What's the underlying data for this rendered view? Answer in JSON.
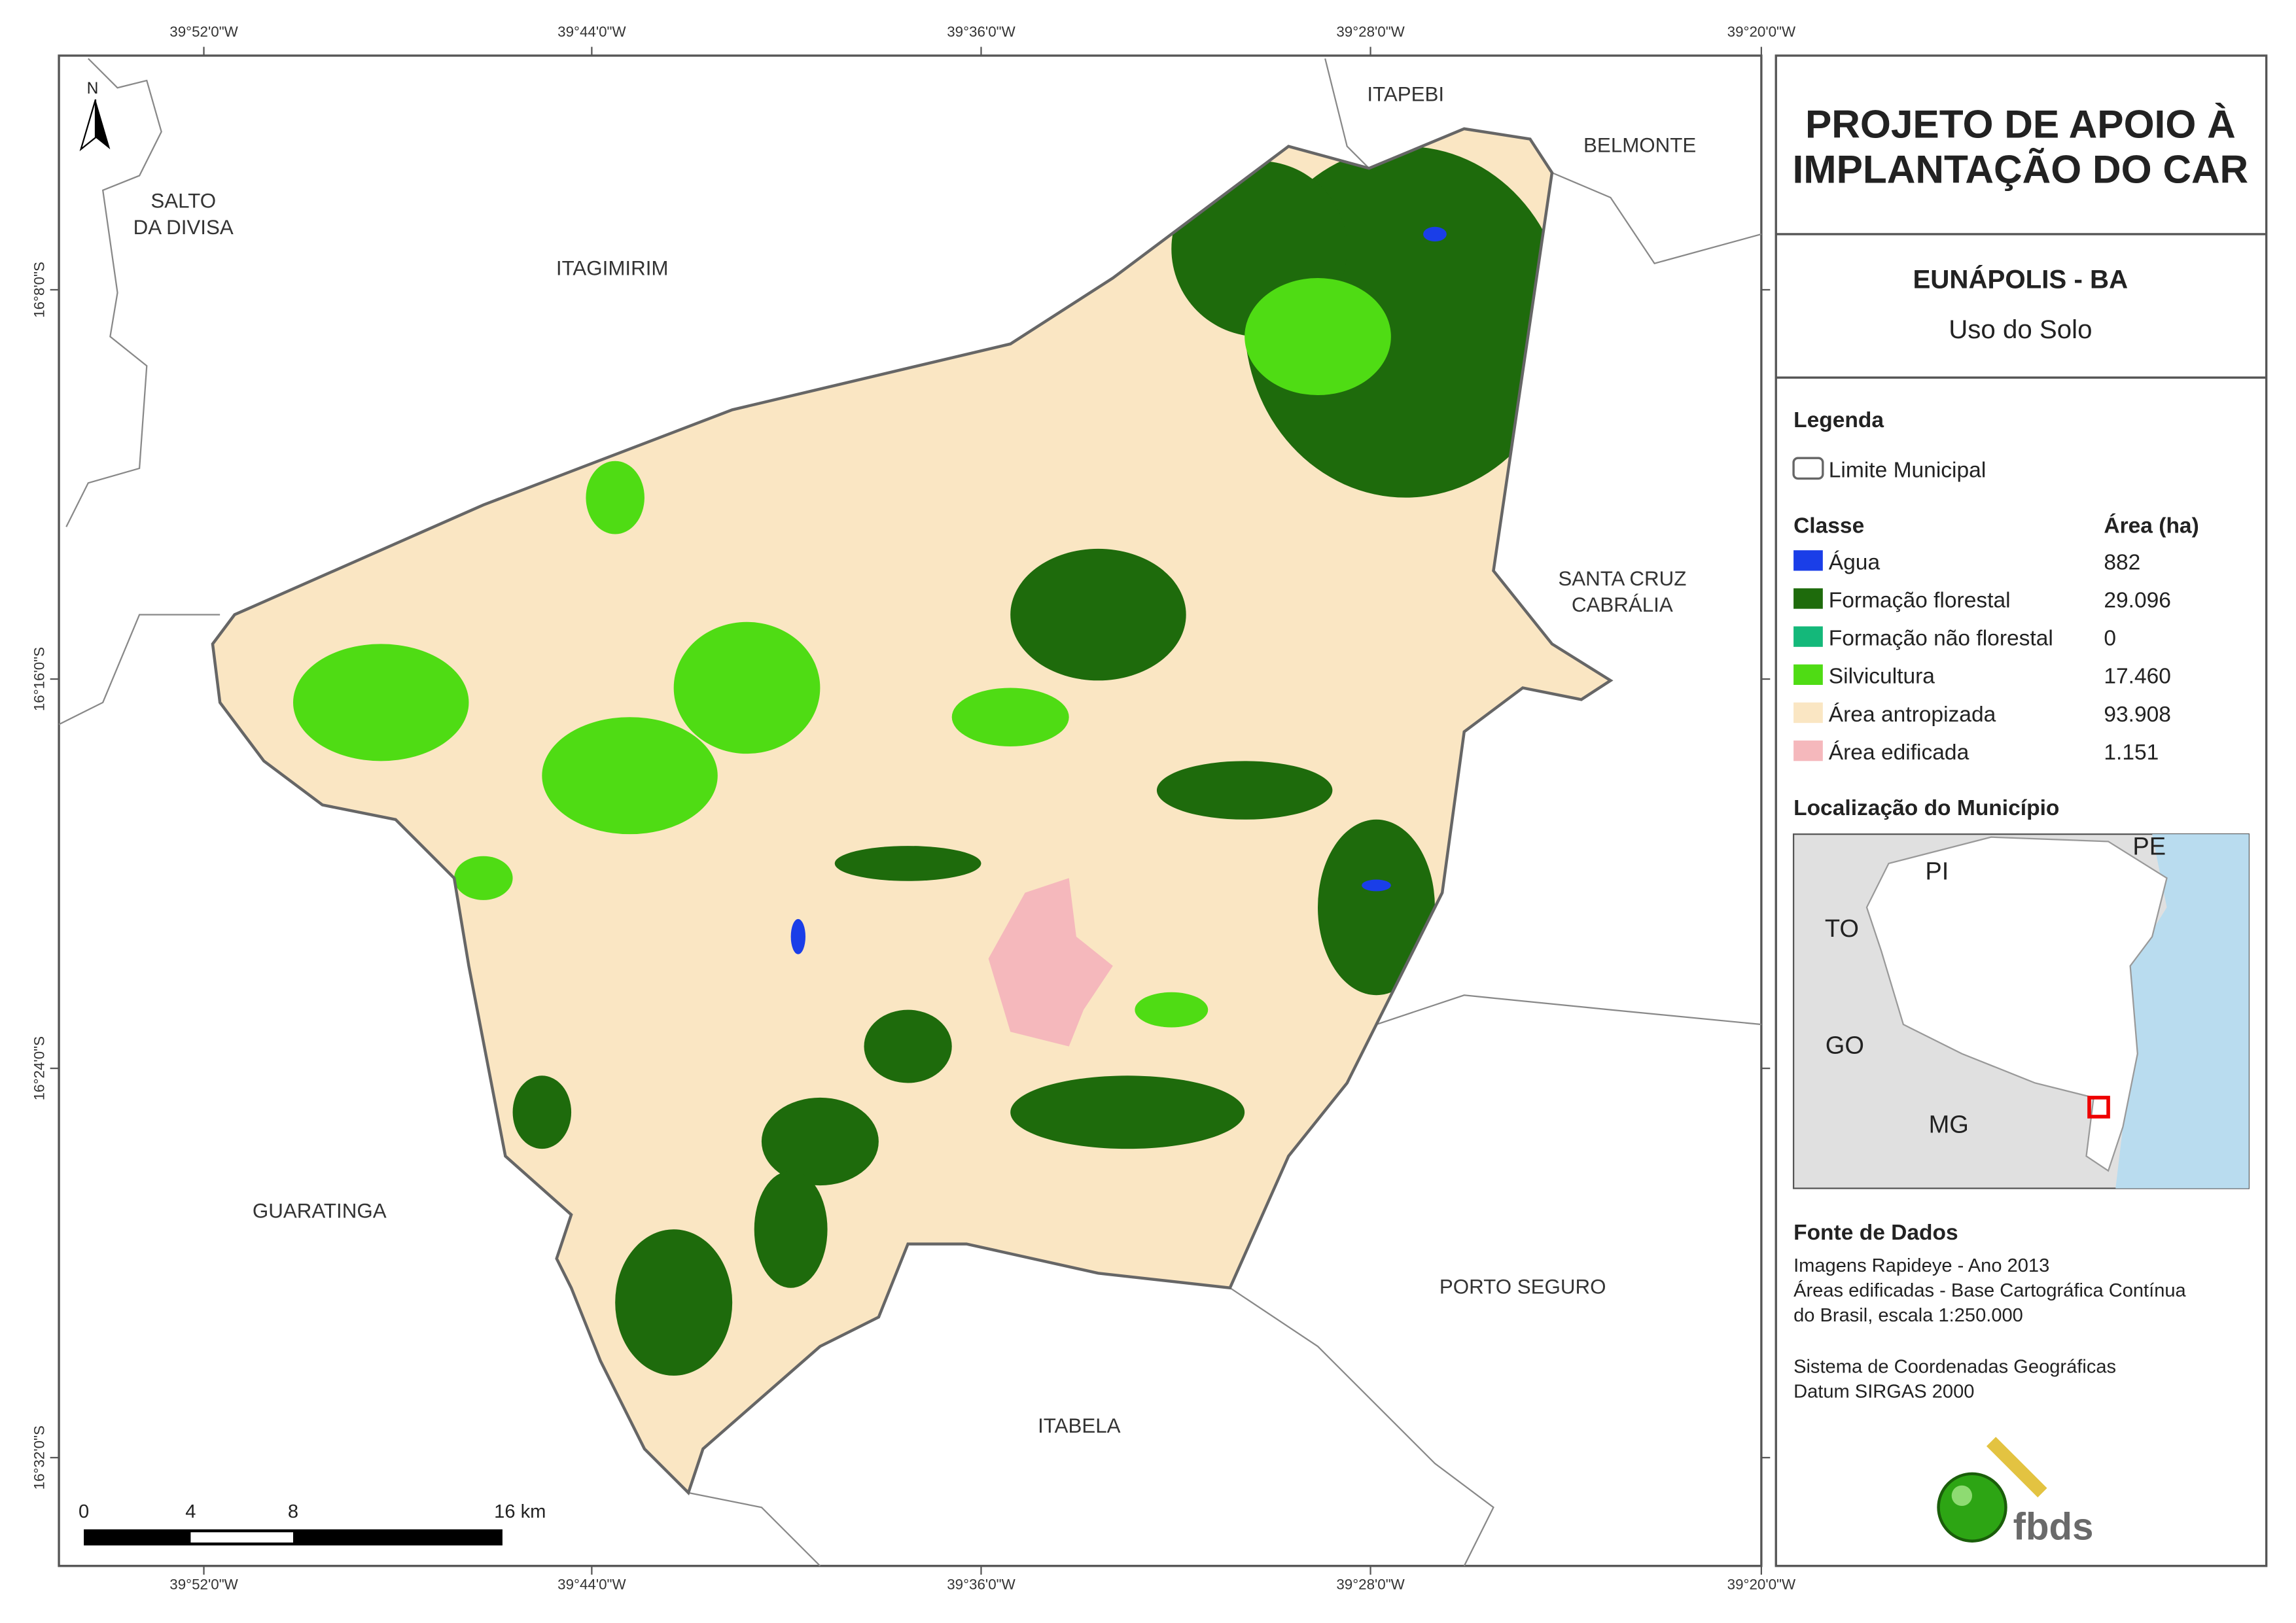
{
  "map": {
    "title_lines": [
      "PROJETO DE APOIO À",
      "IMPLANTAÇÃO DO CAR"
    ],
    "municipality": "EUNÁPOLIS - BA",
    "subtitle": "Uso do Solo",
    "longitude_labels": [
      "39°52'0\"W",
      "39°44'0\"W",
      "39°36'0\"W",
      "39°28'0\"W",
      "39°20'0\"W"
    ],
    "latitude_labels": [
      "16°8'0\"S",
      "16°16'0\"S",
      "16°24'0\"S",
      "16°32'0\"S"
    ],
    "neighbors": [
      [
        "ITAPEBI"
      ],
      [
        "BELMONTE"
      ],
      [
        "SALTO",
        "DA DIVISA"
      ],
      [
        "ITAGIMIRIM"
      ],
      [
        "SANTA CRUZ",
        "CABRÁLIA"
      ],
      [
        "GUARATINGA"
      ],
      [
        "PORTO SEGURO"
      ],
      [
        "ITABELA"
      ]
    ],
    "north": "N",
    "scale_labels": [
      "0",
      "4",
      "8",
      "16 km"
    ]
  },
  "legend": {
    "title": "Legenda",
    "boundary": "Limite Municipal",
    "class_header": "Classe",
    "area_header": "Área (ha)",
    "classes": [
      {
        "name": "Água",
        "color": "#1a3ee8",
        "area": "882"
      },
      {
        "name": "Formação florestal",
        "color": "#1e6b0c",
        "area": "29.096"
      },
      {
        "name": "Formação não florestal",
        "color": "#14b87a",
        "area": "0"
      },
      {
        "name": "Silvicultura",
        "color": "#4fdc14",
        "area": "17.460"
      },
      {
        "name": "Área antropizada",
        "color": "#fae6c3",
        "area": "93.908"
      },
      {
        "name": "Área edificada",
        "color": "#f5b8bc",
        "area": "1.151"
      }
    ]
  },
  "location": {
    "title": "Localização do Município",
    "states": [
      "PI",
      "PE",
      "TO",
      "GO",
      "MG"
    ]
  },
  "sources": {
    "title": "Fonte de Dados",
    "lines": [
      "Imagens Rapideye - Ano 2013",
      "Áreas edificadas - Base Cartográfica Contínua",
      "do Brasil, escala 1:250.000",
      "Sistema de Coordenadas Geográficas",
      "Datum SIRGAS 2000"
    ]
  },
  "logo": "fbds"
}
